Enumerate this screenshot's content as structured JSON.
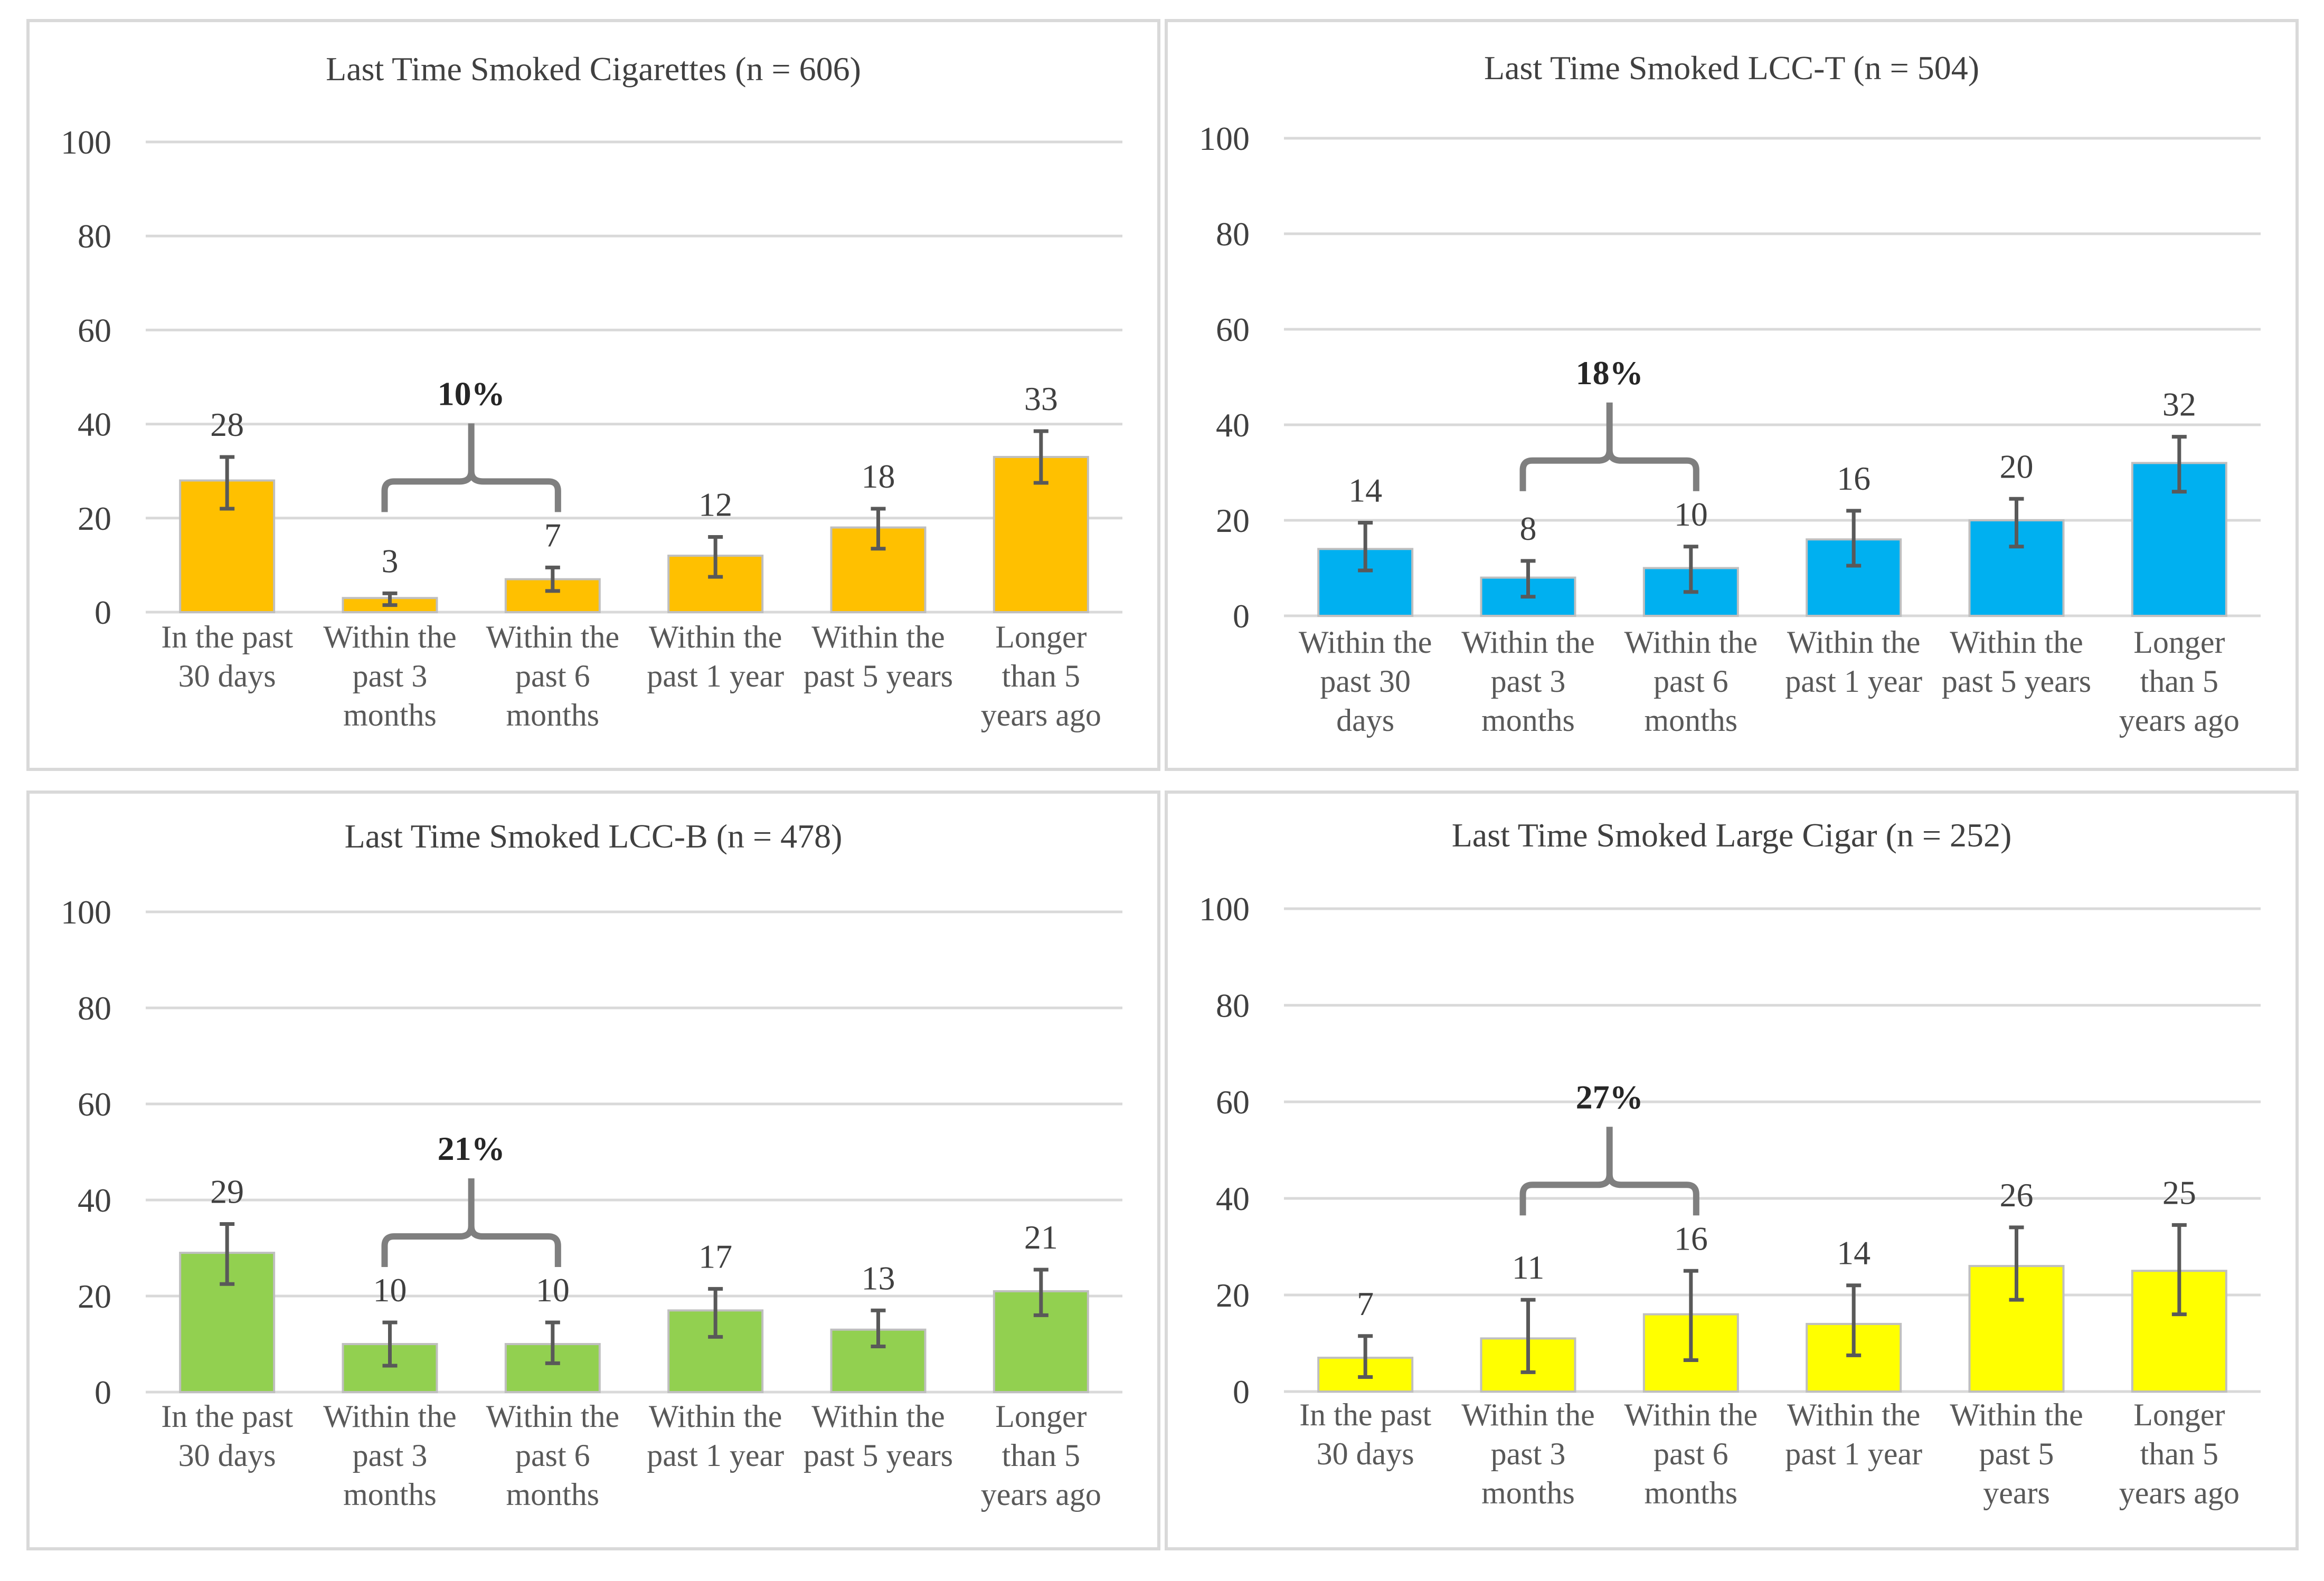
{
  "chart_data": [
    {
      "type": "bar",
      "title": "Last Time Smoked Cigarettes (n = 606)",
      "color": "#ffc000",
      "ylim": [
        0,
        100
      ],
      "yticks": [
        "0",
        "20",
        "40",
        "60",
        "80",
        "100"
      ],
      "categories": [
        [
          "In the past",
          "30 days"
        ],
        [
          "Within the",
          "past 3",
          "months"
        ],
        [
          "Within the",
          "past 6",
          "months"
        ],
        [
          "Within the",
          "past 1 year"
        ],
        [
          "Within the",
          "past 5 years"
        ],
        [
          "Longer",
          "than 5",
          "years ago"
        ]
      ],
      "values": [
        28,
        3,
        7,
        12,
        18,
        33
      ],
      "labels": [
        "28",
        "3",
        "7",
        "12",
        "18",
        "33"
      ],
      "error_low": [
        22,
        1.5,
        4.5,
        7.5,
        13.5,
        27.5
      ],
      "error_high": [
        33,
        4,
        9.5,
        16,
        22,
        38.5
      ],
      "bracket": {
        "label": "10%",
        "from": 1,
        "to": 2
      }
    },
    {
      "type": "bar",
      "title": "Last Time Smoked LCC-T (n = 504)",
      "color": "#00b0f0",
      "ylim": [
        0,
        100
      ],
      "yticks": [
        "0",
        "20",
        "40",
        "60",
        "80",
        "100"
      ],
      "categories": [
        [
          "Within the",
          "past 30",
          "days"
        ],
        [
          "Within the",
          "past 3",
          "months"
        ],
        [
          "Within the",
          "past 6",
          "months"
        ],
        [
          "Within the",
          "past 1 year"
        ],
        [
          "Within the",
          "past 5 years"
        ],
        [
          "Longer",
          "than 5",
          "years ago"
        ]
      ],
      "values": [
        14,
        8,
        10,
        16,
        20,
        32
      ],
      "labels": [
        "14",
        "8",
        "10",
        "16",
        "20",
        "32"
      ],
      "error_low": [
        9.5,
        4,
        5,
        10.5,
        14.5,
        26
      ],
      "error_high": [
        19.5,
        11.5,
        14.5,
        22,
        24.5,
        37.5
      ],
      "bracket": {
        "label": "18%",
        "from": 1,
        "to": 2
      }
    },
    {
      "type": "bar",
      "title": "Last Time Smoked LCC-B (n = 478)",
      "color": "#92d050",
      "ylim": [
        0,
        100
      ],
      "yticks": [
        "0",
        "20",
        "40",
        "60",
        "80",
        "100"
      ],
      "categories": [
        [
          "In the past",
          "30 days"
        ],
        [
          "Within the",
          "past 3",
          "months"
        ],
        [
          "Within the",
          "past 6",
          "months"
        ],
        [
          "Within the",
          "past 1 year"
        ],
        [
          "Within the",
          "past 5 years"
        ],
        [
          "Longer",
          "than 5",
          "years ago"
        ]
      ],
      "values": [
        29,
        10,
        10,
        17,
        13,
        21
      ],
      "labels": [
        "29",
        "10",
        "10",
        "17",
        "13",
        "21"
      ],
      "error_low": [
        22.5,
        5.5,
        6,
        11.5,
        9.5,
        16
      ],
      "error_high": [
        35,
        14.5,
        14.5,
        21.5,
        17,
        25.5
      ],
      "bracket": {
        "label": "21%",
        "from": 1,
        "to": 2
      }
    },
    {
      "type": "bar",
      "title": "Last Time Smoked Large Cigar (n = 252)",
      "color": "#ffff00",
      "ylim": [
        0,
        100
      ],
      "yticks": [
        "0",
        "20",
        "40",
        "60",
        "80",
        "100"
      ],
      "categories": [
        [
          "In the past",
          "30 days"
        ],
        [
          "Within the",
          "past 3",
          "months"
        ],
        [
          "Within the",
          "past 6",
          "months"
        ],
        [
          "Within the",
          "past 1 year"
        ],
        [
          "Within the",
          "past 5",
          "years"
        ],
        [
          "Longer",
          "than 5",
          "years ago"
        ]
      ],
      "values": [
        7,
        11,
        16,
        14,
        26,
        25
      ],
      "labels": [
        "7",
        "11",
        "16",
        "14",
        "26",
        "25"
      ],
      "error_low": [
        3,
        4,
        6.5,
        7.5,
        19,
        16
      ],
      "error_high": [
        11.5,
        19,
        25,
        22,
        34,
        34.5
      ],
      "bracket": {
        "label": "27%",
        "from": 1,
        "to": 2
      }
    }
  ]
}
